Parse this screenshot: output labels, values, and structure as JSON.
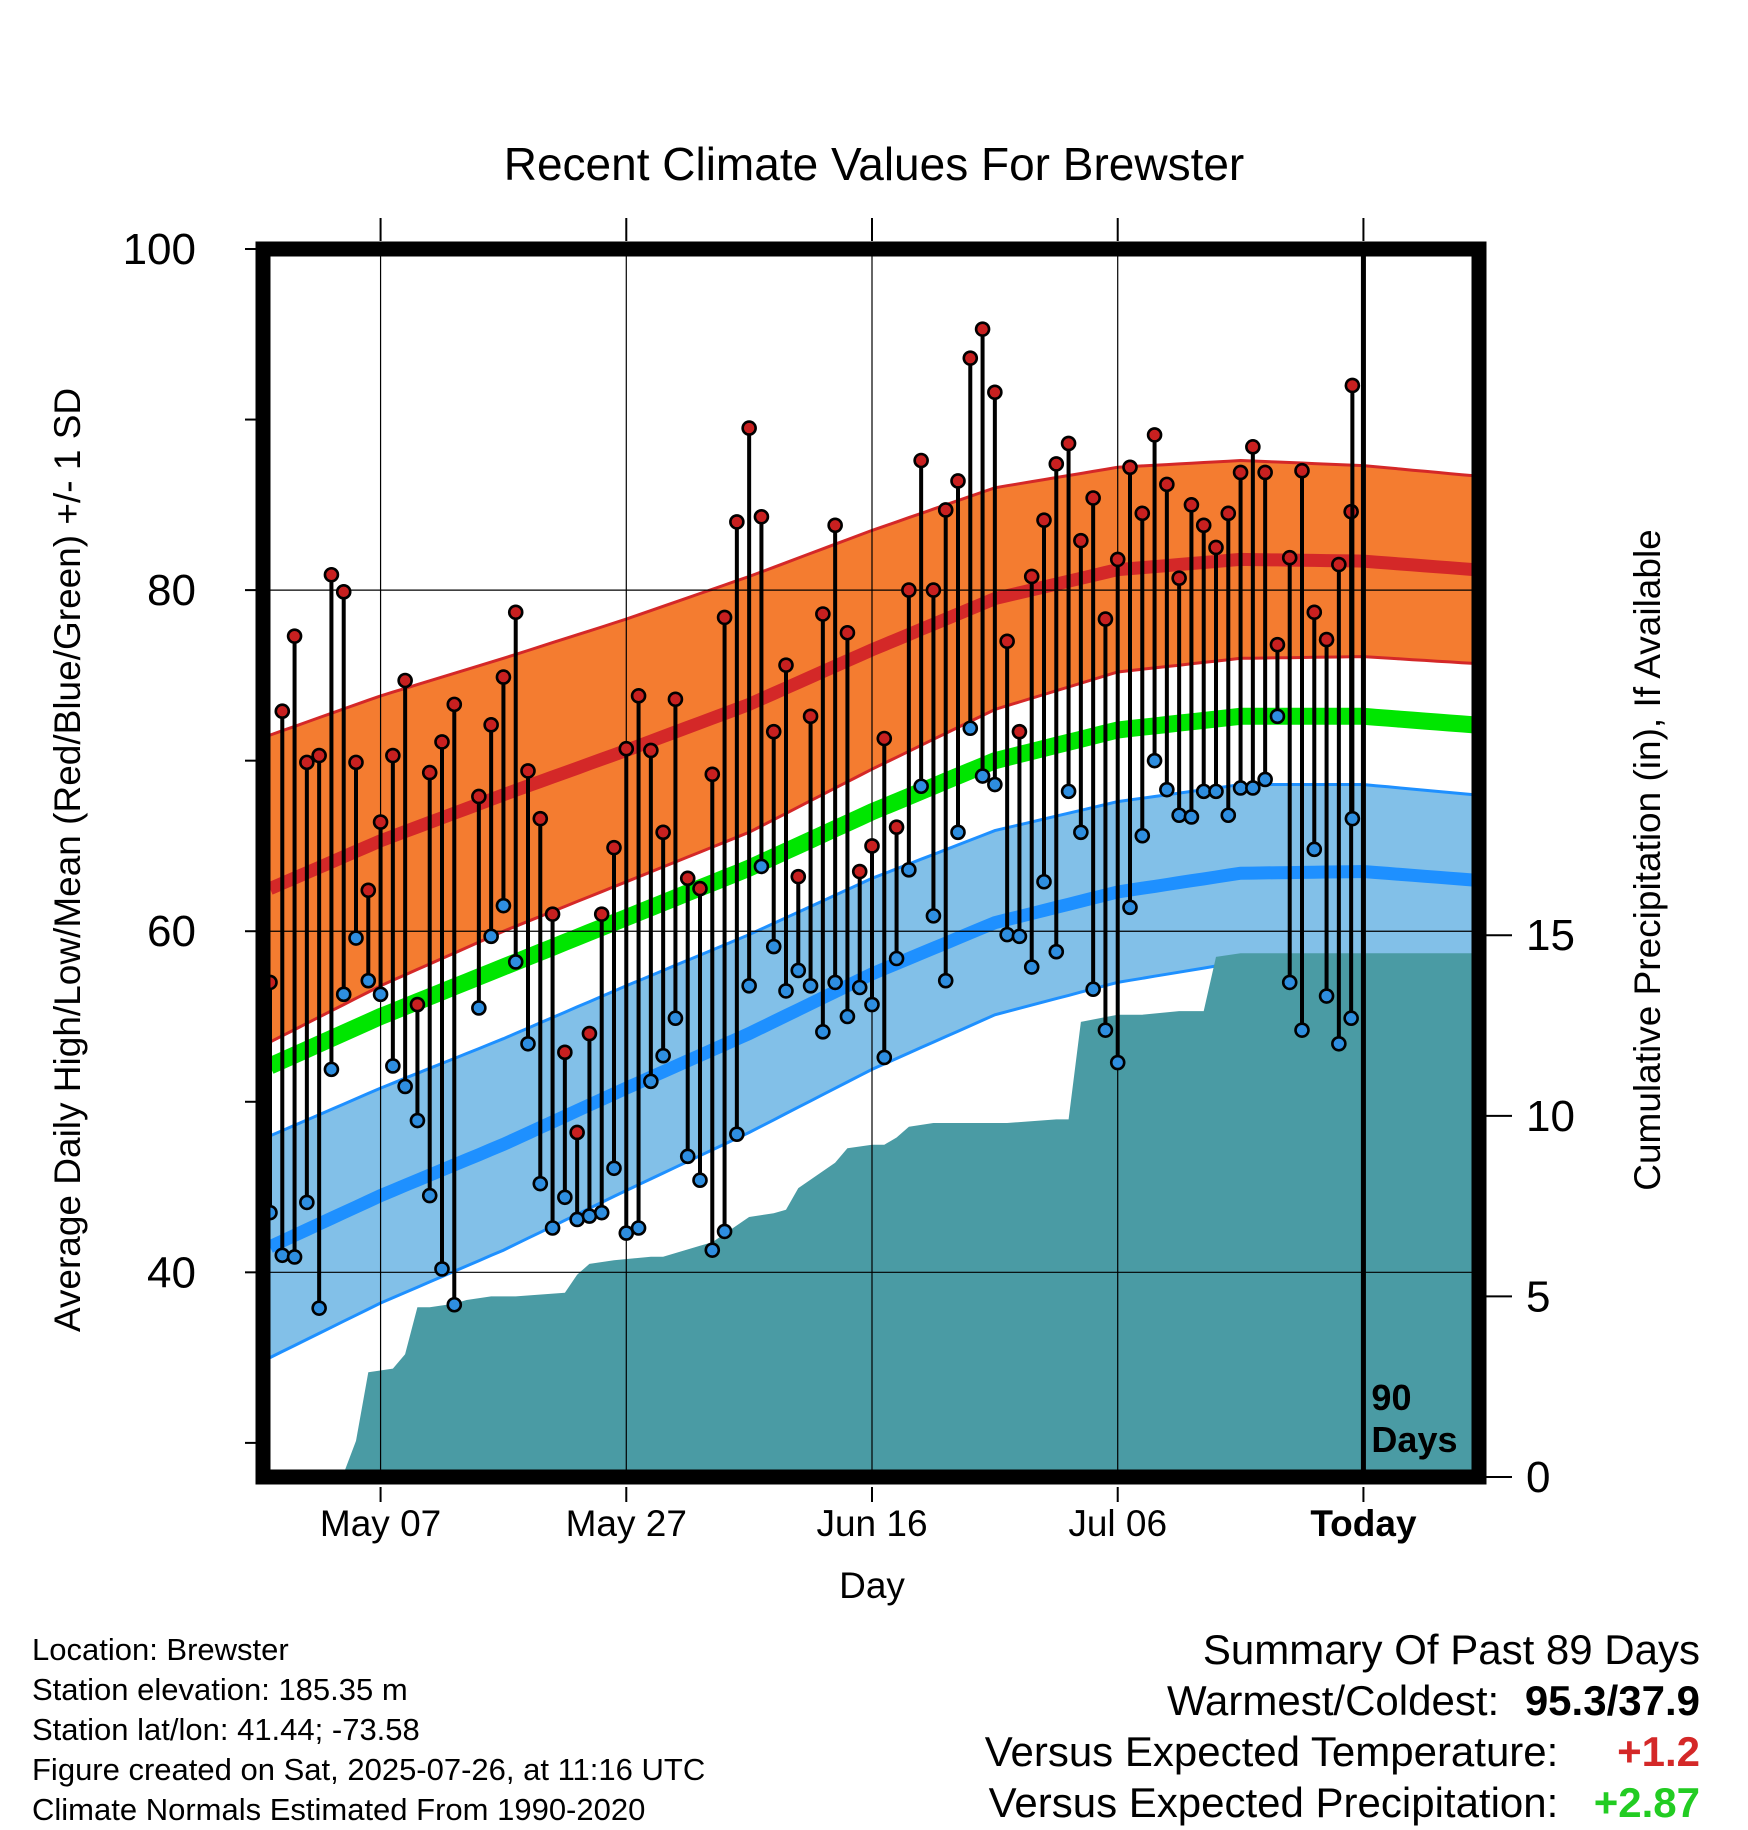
{
  "chart_data": {
    "type": "line",
    "title": "Recent Climate Values For Brewster",
    "xlabel": "Day",
    "ylabel": "Average Daily High/Low/Mean (Red/Blue/Green) +/- 1 SD",
    "y2label": "Cumulative Precipitation (in), If Available",
    "xticks": [
      "May 07",
      "May 27",
      "Jun 16",
      "Jul 06",
      "Today"
    ],
    "yticks": [
      "40",
      "60",
      "80",
      "100"
    ],
    "y2ticks": [
      "0",
      "5",
      "10",
      "15"
    ],
    "ylim": [
      28,
      100
    ],
    "y2lim": [
      0,
      34
    ],
    "xlim": [
      -89,
      9
    ],
    "today_label": [
      "90",
      "Days"
    ],
    "colors": {
      "high": "#d42828",
      "high_band": "#f47c30",
      "low": "#1e90ff",
      "low_band": "#82c0e8",
      "mean": "#00e600",
      "precip": "#4a9ba4",
      "high_dot": "#c82020",
      "low_dot": "#2e8ee0"
    },
    "normals": {
      "x": [
        -89,
        -80,
        -70,
        -60,
        -50,
        -40,
        -30,
        -20,
        -10,
        0,
        9
      ],
      "high": [
        62.5,
        65.3,
        68.0,
        70.6,
        73.3,
        76.5,
        79.5,
        81.2,
        81.8,
        81.7,
        81.2
      ],
      "high_sd": [
        9.0,
        8.5,
        8.0,
        7.7,
        7.5,
        7.0,
        6.5,
        6.0,
        5.8,
        5.6,
        5.5
      ],
      "low": [
        41.5,
        44.5,
        47.5,
        50.8,
        54.0,
        57.5,
        60.5,
        62.3,
        63.4,
        63.5,
        63.0
      ],
      "low_sd": [
        6.5,
        6.3,
        6.2,
        6.0,
        5.8,
        5.6,
        5.4,
        5.3,
        5.2,
        5.1,
        5.0
      ],
      "mean": [
        52.1,
        55.0,
        57.9,
        60.8,
        63.7,
        67.0,
        70.0,
        71.8,
        72.6,
        72.6,
        72.1
      ]
    },
    "daily": {
      "x": [
        -89,
        -88,
        -87,
        -86,
        -85,
        -84,
        -83,
        -82,
        -81,
        -80,
        -79,
        -78,
        -77,
        -76,
        -75,
        -74,
        -73,
        -72,
        -71,
        -70,
        -69,
        -68,
        -67,
        -66,
        -65,
        -64,
        -63,
        -62,
        -61,
        -60,
        -59,
        -58,
        -57,
        -56,
        -55,
        -54,
        -53,
        -52,
        -51,
        -50,
        -49,
        -48,
        -47,
        -46,
        -45,
        -44,
        -43,
        -42,
        -41,
        -40,
        -39,
        -38,
        -37,
        -36,
        -35,
        -34,
        -33,
        -32,
        -31,
        -30,
        -29,
        -28,
        -27,
        -26,
        -25,
        -24,
        -23,
        -22,
        -21,
        -20,
        -19,
        -18,
        -17,
        -16,
        -15,
        -14,
        -13,
        -12,
        -11,
        -10,
        -9,
        -8,
        -7,
        -6,
        -5,
        -4,
        -3,
        -2,
        -1
      ],
      "high": [
        57.0,
        72.9,
        77.3,
        69.9,
        70.3,
        80.9,
        79.9,
        69.9,
        62.4,
        66.4,
        70.3,
        74.7,
        55.7,
        69.3,
        71.1,
        73.3,
        null,
        67.9,
        72.1,
        74.9,
        78.7,
        69.4,
        66.6,
        61.0,
        52.9,
        48.2,
        54.0,
        61.0,
        64.9,
        70.7,
        73.8,
        70.6,
        65.8,
        73.6,
        63.1,
        62.5,
        69.2,
        78.4,
        84.0,
        89.5,
        84.3,
        71.7,
        75.6,
        63.2,
        72.6,
        78.6,
        83.8,
        77.5,
        63.5,
        65.0,
        71.3,
        66.1,
        80.0,
        87.6,
        80.0,
        84.7,
        86.4,
        93.6,
        95.3,
        91.6,
        77.0,
        71.7,
        80.8,
        84.1,
        87.4,
        88.6,
        82.9,
        85.4,
        78.3,
        81.8,
        87.2,
        84.5,
        89.1,
        86.2,
        80.7,
        85.0,
        83.8,
        82.5,
        84.5,
        86.9,
        88.4,
        86.9,
        76.8,
        81.9,
        87.0,
        78.7,
        77.1,
        81.5,
        84.6
      ],
      "low": [
        43.5,
        41.0,
        40.9,
        44.1,
        37.9,
        51.9,
        56.3,
        59.6,
        57.1,
        56.3,
        52.1,
        50.9,
        48.9,
        44.5,
        40.2,
        38.1,
        null,
        55.5,
        59.7,
        61.5,
        58.2,
        53.4,
        45.2,
        42.6,
        44.4,
        43.1,
        43.3,
        43.5,
        46.1,
        42.3,
        42.6,
        51.2,
        52.7,
        54.9,
        46.8,
        45.4,
        41.3,
        42.4,
        48.1,
        56.8,
        63.8,
        59.1,
        56.5,
        57.7,
        56.8,
        54.1,
        57.0,
        55.0,
        56.7,
        55.7,
        52.6,
        58.4,
        63.6,
        68.5,
        60.9,
        57.1,
        65.8,
        71.9,
        69.1,
        68.6,
        59.8,
        59.7,
        57.9,
        62.9,
        58.8,
        68.2,
        65.8,
        56.6,
        54.2,
        52.3,
        61.4,
        65.6,
        70.0,
        68.3,
        66.8,
        66.7,
        68.2,
        68.2,
        66.8,
        68.4,
        68.4,
        68.9,
        72.6,
        57.0,
        54.2,
        64.8,
        56.2,
        53.4,
        54.9
      ]
    },
    "last_day": {
      "high": 92.0,
      "low": 66.6
    },
    "precip": {
      "x": [
        -89,
        -84,
        -83,
        -82,
        -81,
        -79,
        -78,
        -77,
        -76,
        -74,
        -73,
        -71,
        -69,
        -65,
        -64,
        -63,
        -61,
        -58,
        -57,
        -54,
        -53,
        -50,
        -48,
        -47,
        -46,
        -43,
        -42,
        -40,
        -39,
        -38,
        -37,
        -35,
        -32,
        -29,
        -25,
        -24,
        -23,
        -20,
        -19,
        -18,
        -15,
        -14,
        -13,
        -12,
        -10,
        -9,
        9
      ],
      "total": [
        0.0,
        0.0,
        0.1,
        1.0,
        2.9,
        3.0,
        3.4,
        4.7,
        4.7,
        4.8,
        4.9,
        5.0,
        5.0,
        5.1,
        5.6,
        5.9,
        6.0,
        6.1,
        6.1,
        6.4,
        6.5,
        7.2,
        7.3,
        7.4,
        8.0,
        8.7,
        9.1,
        9.2,
        9.2,
        9.4,
        9.7,
        9.8,
        9.8,
        9.8,
        9.9,
        9.9,
        12.6,
        12.8,
        12.8,
        12.8,
        12.9,
        12.9,
        12.9,
        14.4,
        14.5,
        14.5,
        14.5
      ]
    }
  },
  "info": {
    "location": "Location: Brewster",
    "elevation": "Station elevation: 185.35 m",
    "latlon": "Station lat/lon: 41.44; -73.58",
    "created": "Figure created on Sat, 2025-07-26, at 11:16 UTC",
    "normals": "Climate Normals Estimated From 1990-2020"
  },
  "summary": {
    "title": "Summary Of Past 89 Days",
    "warm_cold_label": "Warmest/Coldest:",
    "warm_cold_value": "95.3/37.9",
    "temp_label": "Versus Expected Temperature:",
    "temp_value": "+1.2",
    "temp_color": "#d42828",
    "precip_label": "Versus Expected Precipitation:",
    "precip_value": "+2.87",
    "precip_color": "#22cc22"
  }
}
